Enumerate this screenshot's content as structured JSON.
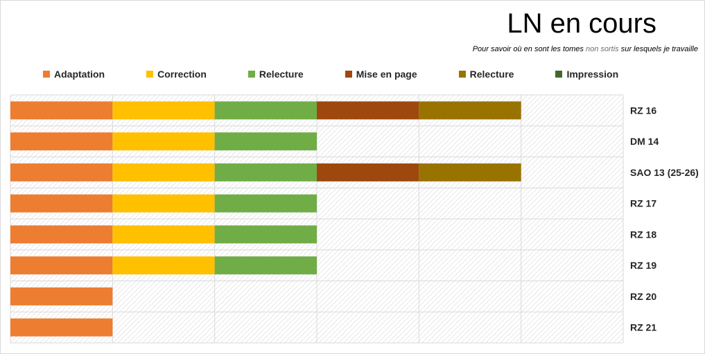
{
  "chart_data": {
    "type": "bar",
    "orientation": "horizontal",
    "stacked": true,
    "title": "LN en cours",
    "subtitle": {
      "part1": "Pour savoir où en sont les tomes ",
      "part2": "non sortis",
      "part3": " sur lesquels je travaille"
    },
    "legend_position": "top",
    "grid": true,
    "xlim": [
      0,
      6
    ],
    "categories": [
      "RZ 16",
      "DM 14",
      "SAO 13 (25-26)",
      "RZ 17",
      "RZ 18",
      "RZ 19",
      "RZ 20",
      "RZ 21"
    ],
    "series": [
      {
        "name": "Adaptation",
        "color": "#ed7d31",
        "values": [
          1,
          1,
          1,
          1,
          1,
          1,
          1,
          1
        ]
      },
      {
        "name": "Correction",
        "color": "#ffc000",
        "values": [
          1,
          1,
          1,
          1,
          1,
          1,
          0,
          0
        ]
      },
      {
        "name": "Relecture",
        "color": "#70ad47",
        "values": [
          1,
          1,
          1,
          1,
          1,
          1,
          0,
          0
        ]
      },
      {
        "name": "Mise en page",
        "color": "#9e480e",
        "values": [
          1,
          0,
          1,
          0,
          0,
          0,
          0,
          0
        ]
      },
      {
        "name": "Relecture",
        "color": "#997300",
        "values": [
          1,
          0,
          1,
          0,
          0,
          0,
          0,
          0
        ]
      },
      {
        "name": "Impression",
        "color": "#43682b",
        "values": [
          0,
          0,
          0,
          0,
          0,
          0,
          0,
          0
        ]
      }
    ]
  }
}
